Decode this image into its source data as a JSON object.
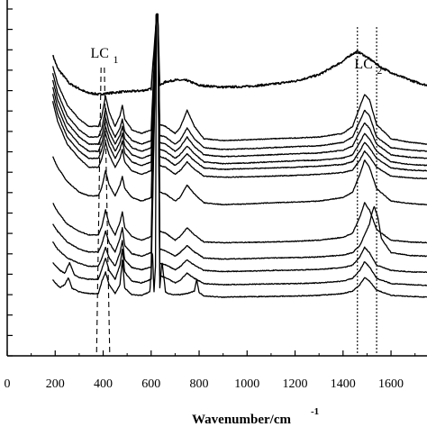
{
  "chart_data": {
    "type": "line",
    "title": "",
    "xlabel_main": "Wavenumber/cm",
    "xlabel_sup": "-1",
    "ylabel": "",
    "xlim": [
      0,
      1750
    ],
    "x_ticks": [
      0,
      200,
      400,
      600,
      800,
      1000,
      1200,
      1400,
      1600
    ],
    "x_tick_labels": [
      "0",
      "200",
      "400",
      "600",
      "800",
      "1000",
      "1200",
      "1400",
      "1600"
    ],
    "y_tick_count": 18,
    "grid": false,
    "legend": "none",
    "annotations": [
      {
        "label_main": "LC",
        "label_sub": "1",
        "lines_x": [
          380,
          420
        ]
      },
      {
        "label_main": "LC",
        "label_sub": "2",
        "lines_x": [
          1460,
          1540
        ]
      }
    ],
    "series": [
      {
        "x": [
          190,
          210,
          260,
          330,
          380,
          420,
          480,
          560,
          600,
          622,
          628,
          636,
          660,
          700,
          750,
          800,
          900,
          1000,
          1100,
          1200,
          1300,
          1400,
          1430,
          1460,
          1480,
          1520,
          1560,
          1620,
          1700,
          1750
        ],
        "y": [
          0.845,
          0.808,
          0.765,
          0.74,
          0.735,
          0.738,
          0.742,
          0.745,
          0.75,
          0.95,
          0.95,
          0.76,
          0.77,
          0.775,
          0.774,
          0.76,
          0.755,
          0.757,
          0.763,
          0.772,
          0.79,
          0.828,
          0.845,
          0.855,
          0.848,
          0.83,
          0.81,
          0.79,
          0.77,
          0.76
        ]
      },
      {
        "x": [
          190,
          210,
          250,
          300,
          340,
          380,
          395,
          410,
          425,
          450,
          470,
          480,
          490,
          520,
          560,
          600,
          622,
          628,
          636,
          660,
          700,
          720,
          750,
          780,
          820,
          900,
          1000,
          1100,
          1200,
          1300,
          1400,
          1440,
          1470,
          1490,
          1510,
          1540,
          1600,
          1680,
          1750
        ],
        "y": [
          0.815,
          0.765,
          0.705,
          0.665,
          0.645,
          0.645,
          0.675,
          0.73,
          0.685,
          0.645,
          0.675,
          0.705,
          0.665,
          0.635,
          0.625,
          0.635,
          0.96,
          0.96,
          0.65,
          0.645,
          0.625,
          0.64,
          0.69,
          0.645,
          0.61,
          0.605,
          0.607,
          0.61,
          0.612,
          0.615,
          0.625,
          0.645,
          0.7,
          0.735,
          0.72,
          0.65,
          0.61,
          0.6,
          0.595
        ]
      },
      {
        "x": [
          190,
          210,
          250,
          300,
          340,
          380,
          395,
          410,
          425,
          450,
          470,
          480,
          490,
          520,
          560,
          600,
          622,
          628,
          636,
          660,
          700,
          720,
          750,
          780,
          820,
          900,
          1000,
          1100,
          1200,
          1300,
          1400,
          1440,
          1470,
          1490,
          1510,
          1540,
          1600,
          1680,
          1750
        ],
        "y": [
          0.795,
          0.74,
          0.675,
          0.635,
          0.615,
          0.615,
          0.64,
          0.695,
          0.65,
          0.615,
          0.64,
          0.665,
          0.63,
          0.605,
          0.595,
          0.605,
          0.96,
          0.96,
          0.62,
          0.615,
          0.595,
          0.605,
          0.64,
          0.61,
          0.585,
          0.58,
          0.582,
          0.585,
          0.588,
          0.59,
          0.6,
          0.615,
          0.66,
          0.69,
          0.675,
          0.615,
          0.585,
          0.578,
          0.575
        ]
      },
      {
        "x": [
          190,
          210,
          250,
          300,
          340,
          380,
          395,
          410,
          425,
          450,
          470,
          480,
          490,
          520,
          560,
          600,
          622,
          628,
          636,
          660,
          700,
          720,
          750,
          780,
          820,
          900,
          1000,
          1100,
          1200,
          1300,
          1400,
          1440,
          1470,
          1490,
          1510,
          1540,
          1600,
          1680,
          1750
        ],
        "y": [
          0.775,
          0.72,
          0.655,
          0.615,
          0.595,
          0.595,
          0.62,
          0.67,
          0.63,
          0.595,
          0.62,
          0.645,
          0.61,
          0.585,
          0.575,
          0.585,
          0.96,
          0.96,
          0.6,
          0.595,
          0.575,
          0.585,
          0.615,
          0.588,
          0.565,
          0.56,
          0.562,
          0.565,
          0.568,
          0.57,
          0.578,
          0.59,
          0.63,
          0.655,
          0.64,
          0.595,
          0.565,
          0.558,
          0.555
        ]
      },
      {
        "x": [
          190,
          210,
          250,
          300,
          340,
          380,
          395,
          410,
          425,
          450,
          470,
          480,
          490,
          520,
          560,
          600,
          622,
          628,
          636,
          660,
          700,
          720,
          750,
          780,
          820,
          900,
          1000,
          1100,
          1200,
          1300,
          1400,
          1440,
          1470,
          1490,
          1510,
          1540,
          1600,
          1680,
          1750
        ],
        "y": [
          0.755,
          0.7,
          0.635,
          0.595,
          0.575,
          0.575,
          0.6,
          0.645,
          0.61,
          0.575,
          0.6,
          0.625,
          0.59,
          0.565,
          0.555,
          0.565,
          0.96,
          0.96,
          0.58,
          0.575,
          0.555,
          0.565,
          0.59,
          0.568,
          0.545,
          0.54,
          0.542,
          0.545,
          0.548,
          0.55,
          0.556,
          0.565,
          0.6,
          0.625,
          0.61,
          0.575,
          0.545,
          0.538,
          0.535
        ]
      },
      {
        "x": [
          190,
          210,
          250,
          300,
          340,
          380,
          395,
          410,
          425,
          450,
          470,
          480,
          490,
          520,
          560,
          600,
          622,
          628,
          636,
          660,
          700,
          720,
          750,
          780,
          820,
          900,
          1000,
          1100,
          1200,
          1300,
          1400,
          1440,
          1470,
          1490,
          1510,
          1540,
          1600,
          1680,
          1750
        ],
        "y": [
          0.735,
          0.68,
          0.615,
          0.575,
          0.555,
          0.555,
          0.58,
          0.625,
          0.59,
          0.555,
          0.58,
          0.605,
          0.57,
          0.545,
          0.535,
          0.545,
          0.96,
          0.96,
          0.56,
          0.555,
          0.535,
          0.545,
          0.568,
          0.548,
          0.528,
          0.524,
          0.526,
          0.528,
          0.53,
          0.533,
          0.538,
          0.546,
          0.575,
          0.6,
          0.585,
          0.555,
          0.528,
          0.522,
          0.52
        ]
      },
      {
        "x": [
          190,
          210,
          250,
          300,
          340,
          380,
          395,
          410,
          425,
          450,
          470,
          480,
          490,
          520,
          560,
          600,
          622,
          628,
          636,
          660,
          700,
          720,
          750,
          780,
          820,
          900,
          1000,
          1100,
          1200,
          1300,
          1400,
          1440,
          1470,
          1490,
          1510,
          1540,
          1600,
          1680,
          1750
        ],
        "y": [
          0.715,
          0.66,
          0.595,
          0.555,
          0.53,
          0.53,
          0.555,
          0.6,
          0.565,
          0.53,
          0.555,
          0.58,
          0.545,
          0.52,
          0.51,
          0.52,
          0.96,
          0.96,
          0.535,
          0.53,
          0.51,
          0.52,
          0.545,
          0.525,
          0.505,
          0.502,
          0.503,
          0.505,
          0.507,
          0.51,
          0.515,
          0.522,
          0.55,
          0.575,
          0.56,
          0.53,
          0.505,
          0.5,
          0.498
        ]
      },
      {
        "x": [
          190,
          210,
          250,
          300,
          340,
          380,
          395,
          410,
          425,
          450,
          470,
          480,
          490,
          520,
          560,
          600,
          622,
          628,
          636,
          660,
          700,
          720,
          750,
          780,
          820,
          900,
          1000,
          1100,
          1200,
          1300,
          1400,
          1440,
          1470,
          1490,
          1510,
          1540,
          1600,
          1680,
          1750
        ],
        "y": [
          0.56,
          0.53,
          0.49,
          0.46,
          0.45,
          0.45,
          0.475,
          0.52,
          0.48,
          0.45,
          0.48,
          0.505,
          0.47,
          0.445,
          0.435,
          0.445,
          0.96,
          0.96,
          0.46,
          0.455,
          0.435,
          0.445,
          0.48,
          0.455,
          0.43,
          0.425,
          0.427,
          0.43,
          0.432,
          0.435,
          0.445,
          0.46,
          0.51,
          0.55,
          0.53,
          0.47,
          0.435,
          0.428,
          0.425
        ]
      },
      {
        "x": [
          190,
          210,
          250,
          300,
          340,
          380,
          395,
          410,
          425,
          450,
          470,
          480,
          490,
          520,
          560,
          600,
          622,
          628,
          636,
          660,
          700,
          720,
          750,
          780,
          820,
          900,
          1000,
          1100,
          1200,
          1300,
          1400,
          1440,
          1470,
          1490,
          1510,
          1540,
          1600,
          1680,
          1750
        ],
        "y": [
          0.43,
          0.405,
          0.37,
          0.35,
          0.34,
          0.34,
          0.365,
          0.41,
          0.37,
          0.34,
          0.375,
          0.405,
          0.36,
          0.335,
          0.325,
          0.335,
          0.96,
          0.96,
          0.35,
          0.345,
          0.325,
          0.335,
          0.36,
          0.34,
          0.32,
          0.318,
          0.319,
          0.32,
          0.322,
          0.325,
          0.333,
          0.345,
          0.39,
          0.43,
          0.41,
          0.355,
          0.325,
          0.32,
          0.318
        ]
      },
      {
        "x": [
          190,
          210,
          250,
          300,
          340,
          380,
          395,
          410,
          425,
          450,
          470,
          480,
          490,
          520,
          560,
          600,
          622,
          628,
          636,
          660,
          700,
          720,
          750,
          780,
          820,
          900,
          1000,
          1100,
          1200,
          1300,
          1400,
          1440,
          1470,
          1490,
          1510,
          1520,
          1530,
          1545,
          1560,
          1600,
          1680,
          1750
        ],
        "y": [
          0.37,
          0.35,
          0.32,
          0.3,
          0.292,
          0.292,
          0.315,
          0.35,
          0.318,
          0.292,
          0.33,
          0.36,
          0.31,
          0.287,
          0.28,
          0.29,
          0.96,
          0.96,
          0.3,
          0.295,
          0.28,
          0.29,
          0.31,
          0.292,
          0.275,
          0.272,
          0.273,
          0.275,
          0.276,
          0.278,
          0.283,
          0.29,
          0.31,
          0.34,
          0.37,
          0.4,
          0.42,
          0.39,
          0.33,
          0.29,
          0.282,
          0.28
        ]
      },
      {
        "x": [
          190,
          210,
          250,
          300,
          340,
          380,
          395,
          410,
          425,
          450,
          470,
          480,
          490,
          520,
          560,
          600,
          622,
          628,
          636,
          660,
          700,
          720,
          750,
          780,
          820,
          900,
          1000,
          1100,
          1200,
          1300,
          1400,
          1440,
          1470,
          1490,
          1510,
          1540,
          1600,
          1680,
          1750
        ],
        "y": [
          0.32,
          0.3,
          0.275,
          0.26,
          0.252,
          0.252,
          0.275,
          0.305,
          0.275,
          0.252,
          0.29,
          0.325,
          0.27,
          0.248,
          0.242,
          0.25,
          0.96,
          0.96,
          0.26,
          0.256,
          0.242,
          0.25,
          0.27,
          0.255,
          0.24,
          0.237,
          0.238,
          0.24,
          0.241,
          0.243,
          0.248,
          0.255,
          0.278,
          0.305,
          0.29,
          0.255,
          0.24,
          0.236,
          0.235
        ]
      },
      {
        "x": [
          190,
          200,
          220,
          240,
          260,
          280,
          300,
          340,
          380,
          395,
          410,
          425,
          450,
          470,
          480,
          490,
          520,
          560,
          600,
          622,
          628,
          636,
          660,
          700,
          720,
          750,
          780,
          820,
          900,
          1000,
          1100,
          1200,
          1300,
          1400,
          1440,
          1470,
          1490,
          1510,
          1540,
          1600,
          1680,
          1750
        ],
        "y": [
          0.262,
          0.255,
          0.24,
          0.232,
          0.262,
          0.228,
          0.22,
          0.215,
          0.215,
          0.245,
          0.275,
          0.24,
          0.215,
          0.255,
          0.3,
          0.235,
          0.21,
          0.205,
          0.215,
          0.96,
          0.96,
          0.225,
          0.22,
          0.205,
          0.212,
          0.232,
          0.218,
          0.203,
          0.2,
          0.201,
          0.202,
          0.203,
          0.205,
          0.21,
          0.218,
          0.24,
          0.265,
          0.25,
          0.218,
          0.203,
          0.2,
          0.198
        ]
      },
      {
        "x": [
          190,
          200,
          220,
          240,
          255,
          270,
          300,
          340,
          380,
          395,
          410,
          425,
          450,
          470,
          480,
          490,
          520,
          560,
          595,
          605,
          612,
          618,
          622,
          628,
          636,
          645,
          660,
          670,
          690,
          720,
          750,
          780,
          790,
          800,
          820,
          900,
          1000,
          1100,
          1200,
          1300,
          1400,
          1440,
          1470,
          1490,
          1510,
          1540,
          1600,
          1680,
          1750
        ],
        "y": [
          0.215,
          0.205,
          0.192,
          0.2,
          0.22,
          0.19,
          0.18,
          0.175,
          0.175,
          0.21,
          0.235,
          0.2,
          0.175,
          0.2,
          0.27,
          0.19,
          0.172,
          0.17,
          0.18,
          0.3,
          0.18,
          0.25,
          0.96,
          0.96,
          0.19,
          0.265,
          0.18,
          0.175,
          0.172,
          0.172,
          0.175,
          0.182,
          0.215,
          0.178,
          0.168,
          0.165,
          0.166,
          0.167,
          0.168,
          0.17,
          0.175,
          0.182,
          0.2,
          0.22,
          0.21,
          0.185,
          0.17,
          0.167,
          0.165
        ]
      }
    ]
  }
}
